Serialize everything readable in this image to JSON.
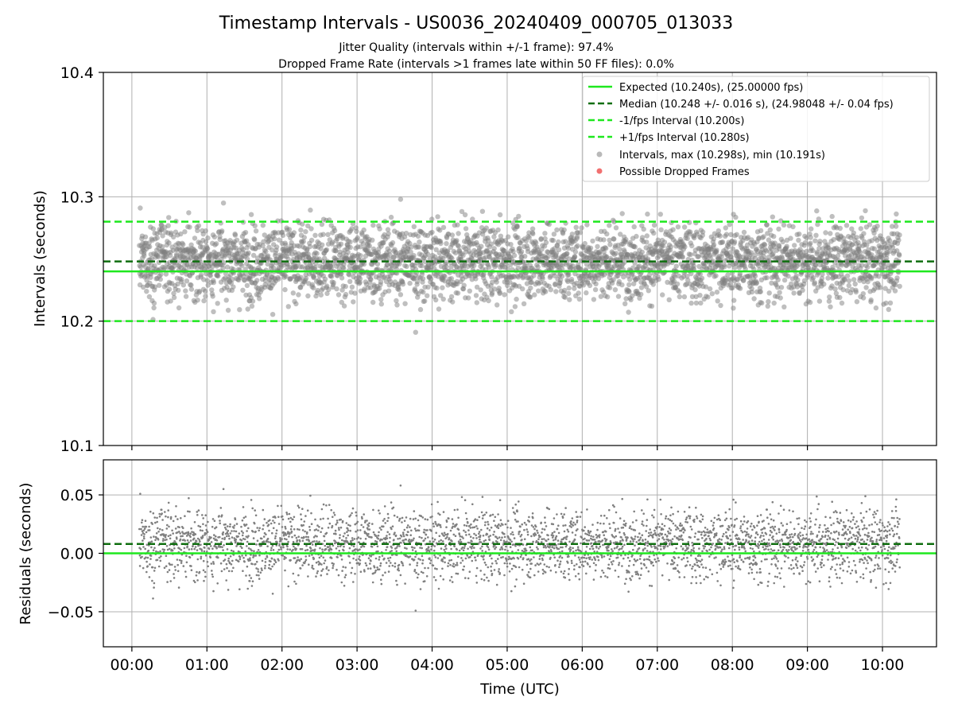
{
  "chart_data": [
    {
      "type": "scatter",
      "panel": "intervals",
      "title": "Timestamp Intervals - US0036_20240409_000705_013033",
      "subtitle_1": "Jitter Quality (intervals within +/-1 frame): 97.4%",
      "subtitle_2": "Dropped Frame Rate (intervals >1 frames late within 50 FF files): 0.0%",
      "ylabel": "Intervals (seconds)",
      "xlabel": "",
      "ylim": [
        10.1,
        10.4
      ],
      "xlim_hours": [
        -0.38,
        10.72
      ],
      "yticks": [
        10.1,
        10.2,
        10.3,
        10.4
      ],
      "ytick_labels": [
        "10.1",
        "10.2",
        "10.3",
        "10.4"
      ],
      "grid": true,
      "reference_lines": {
        "expected": 10.24,
        "median": 10.248,
        "minus_1fps": 10.2,
        "plus_1fps": 10.28
      },
      "scatter_summary": {
        "x_range_hours": [
          0.1,
          10.23
        ],
        "y_center": 10.248,
        "y_max": 10.298,
        "y_min": 10.191,
        "approx_count": 3500
      },
      "legend_position": "top-right",
      "legend": [
        {
          "label": "Expected (10.240s), (25.00000 fps)",
          "style": "solid",
          "color": "#1ee81e"
        },
        {
          "label": "Median (10.248 +/- 0.016 s), (24.98048 +/- 0.04 fps)",
          "style": "dashed",
          "color": "#0f6e0f"
        },
        {
          "label": "-1/fps Interval (10.200s)",
          "style": "dashed",
          "color": "#1ee81e"
        },
        {
          "label": "+1/fps Interval (10.280s)",
          "style": "dashed",
          "color": "#1ee81e"
        },
        {
          "label": "Intervals, max (10.298s), min (10.191s)",
          "style": "marker",
          "color": "#808080"
        },
        {
          "label": "Possible Dropped Frames",
          "style": "marker",
          "color": "#f06060"
        }
      ]
    },
    {
      "type": "scatter",
      "panel": "residuals",
      "ylabel": "Residuals (seconds)",
      "xlabel": "Time (UTC)",
      "ylim": [
        -0.08,
        0.08
      ],
      "xlim_hours": [
        -0.38,
        10.72
      ],
      "yticks": [
        -0.05,
        0.0,
        0.05
      ],
      "ytick_labels": [
        "−0.05",
        "0.00",
        "0.05"
      ],
      "xticks_hours": [
        0,
        1,
        2,
        3,
        4,
        5,
        6,
        7,
        8,
        9,
        10
      ],
      "xtick_labels": [
        "00:00",
        "01:00",
        "02:00",
        "03:00",
        "04:00",
        "05:00",
        "06:00",
        "07:00",
        "08:00",
        "09:00",
        "10:00"
      ],
      "grid": true,
      "reference_lines": {
        "zero": 0.0,
        "median_residual": 0.008
      },
      "scatter_summary": {
        "x_range_hours": [
          0.1,
          10.23
        ],
        "y_center": 0.008,
        "y_max": 0.058,
        "y_min": -0.049
      }
    }
  ],
  "colors": {
    "bright_green": "#1ee81e",
    "dark_green": "#0f6e0f",
    "point_gray": "#808080",
    "dropped_red": "#f06060",
    "grid": "#b0b0b0"
  }
}
